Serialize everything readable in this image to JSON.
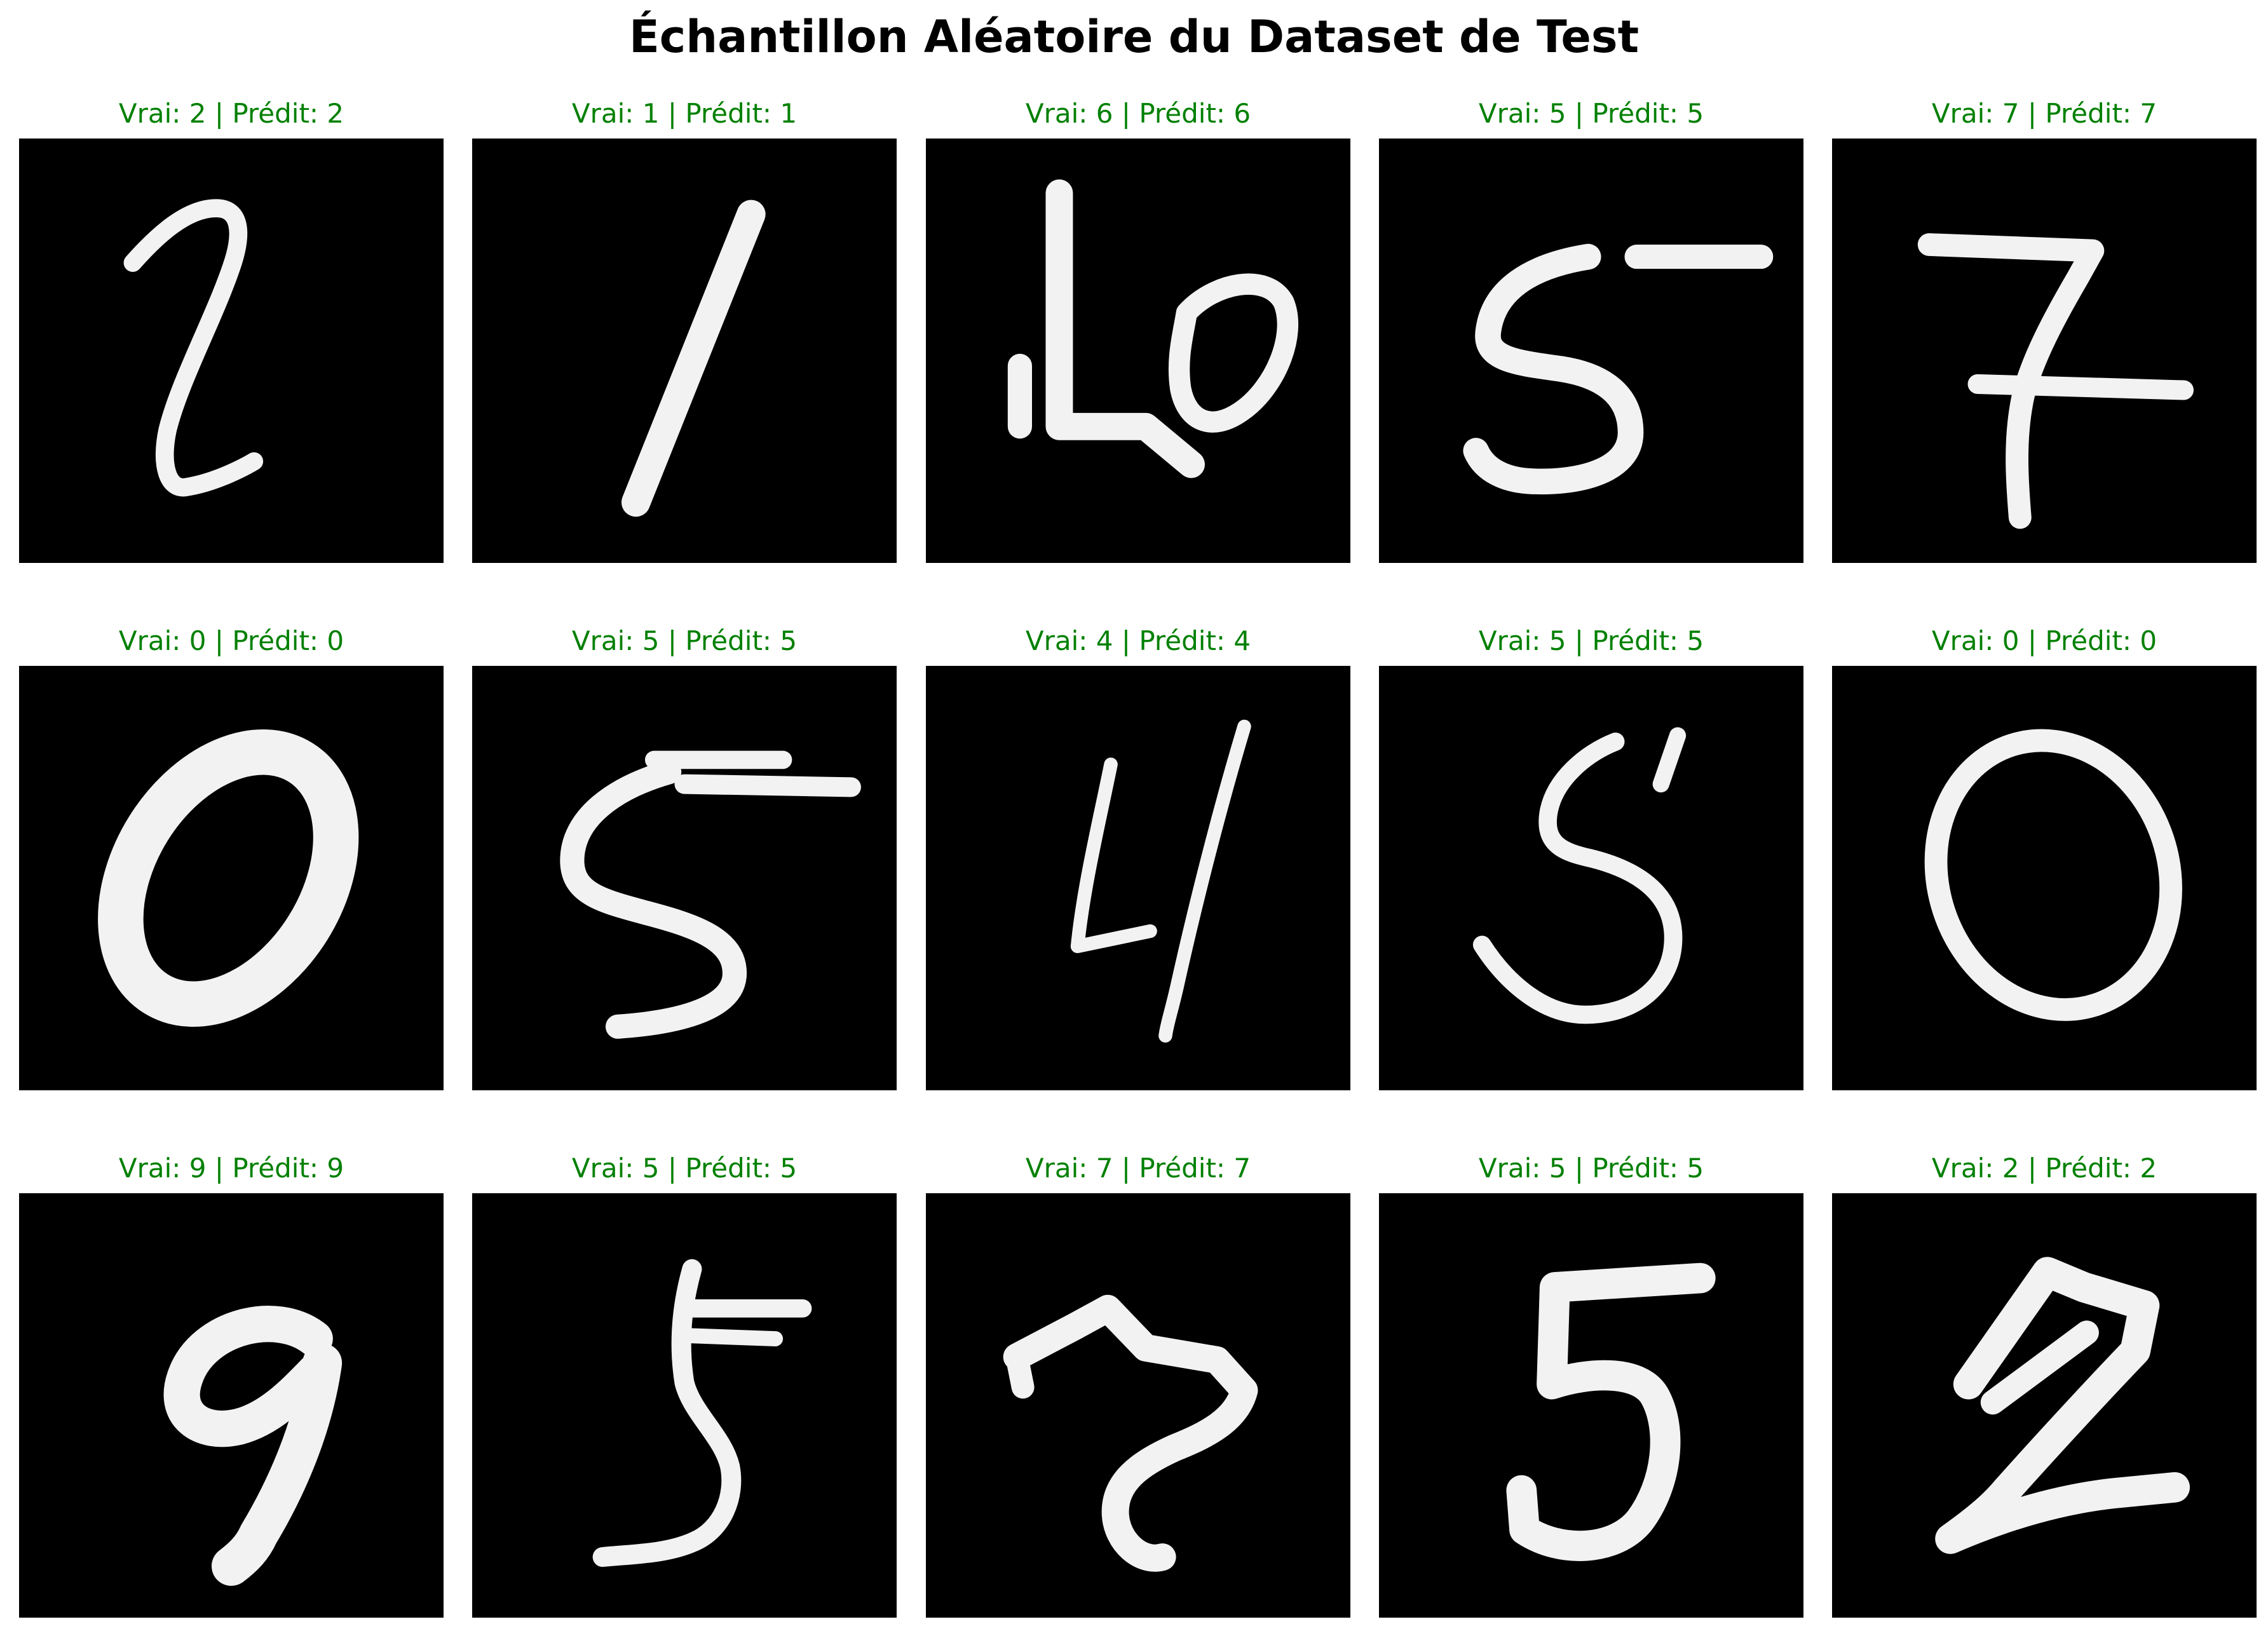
{
  "title": "Échantillon Aléatoire du Dataset de Test",
  "caption_color": "#008000",
  "samples": [
    {
      "label": "Vrai: 2 | Prédit: 2",
      "true_digit": 2,
      "predicted_digit": 2
    },
    {
      "label": "Vrai: 1 | Prédit: 1",
      "true_digit": 1,
      "predicted_digit": 1
    },
    {
      "label": "Vrai: 6 | Prédit: 6",
      "true_digit": 6,
      "predicted_digit": 6
    },
    {
      "label": "Vrai: 5 | Prédit: 5",
      "true_digit": 5,
      "predicted_digit": 5
    },
    {
      "label": "Vrai: 7 | Prédit: 7",
      "true_digit": 7,
      "predicted_digit": 7
    },
    {
      "label": "Vrai: 0 | Prédit: 0",
      "true_digit": 0,
      "predicted_digit": 0
    },
    {
      "label": "Vrai: 5 | Prédit: 5",
      "true_digit": 5,
      "predicted_digit": 5
    },
    {
      "label": "Vrai: 4 | Prédit: 4",
      "true_digit": 4,
      "predicted_digit": 4
    },
    {
      "label": "Vrai: 5 | Prédit: 5",
      "true_digit": 5,
      "predicted_digit": 5
    },
    {
      "label": "Vrai: 0 | Prédit: 0",
      "true_digit": 0,
      "predicted_digit": 0
    },
    {
      "label": "Vrai: 9 | Prédit: 9",
      "true_digit": 9,
      "predicted_digit": 9
    },
    {
      "label": "Vrai: 5 | Prédit: 5",
      "true_digit": 5,
      "predicted_digit": 5
    },
    {
      "label": "Vrai: 7 | Prédit: 7",
      "true_digit": 7,
      "predicted_digit": 7
    },
    {
      "label": "Vrai: 5 | Prédit: 5",
      "true_digit": 5,
      "predicted_digit": 5
    },
    {
      "label": "Vrai: 2 | Prédit: 2",
      "true_digit": 2,
      "predicted_digit": 2
    }
  ]
}
